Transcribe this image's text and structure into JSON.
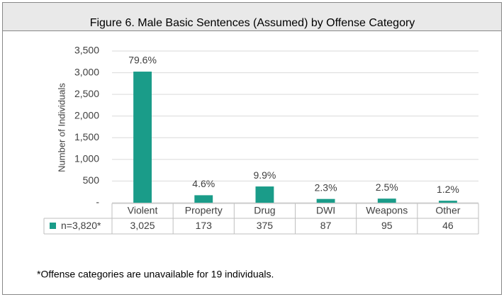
{
  "chart_data": {
    "type": "bar",
    "title": "Figure 6. Male Basic Sentences (Assumed) by Offense Category",
    "y_label": "Number of Individuals",
    "categories": [
      "Violent",
      "Property",
      "Drug",
      "DWI",
      "Weapons",
      "Other"
    ],
    "series": [
      {
        "name": "n=3,820*",
        "color": "#1a9c89",
        "values": [
          3025,
          173,
          375,
          87,
          95,
          46
        ],
        "value_labels": [
          "3,025",
          "173",
          "375",
          "87",
          "95",
          "46"
        ],
        "percent_labels": [
          "79.6%",
          "4.6%",
          "9.9%",
          "2.3%",
          "2.5%",
          "1.2%"
        ]
      }
    ],
    "ylim": [
      0,
      3500
    ],
    "yticks": [
      {
        "value": 0,
        "label": "-"
      },
      500,
      {
        "value": 1000,
        "label": "1,000"
      },
      {
        "value": 1500,
        "label": "1,500"
      },
      {
        "value": 2000,
        "label": "2,000"
      },
      {
        "value": 2500,
        "label": "2,500"
      },
      {
        "value": 3000,
        "label": "3,000"
      },
      {
        "value": 3500,
        "label": "3,500"
      }
    ],
    "grid": true
  },
  "footnote": "*Offense categories are unavailable for 19 individuals."
}
